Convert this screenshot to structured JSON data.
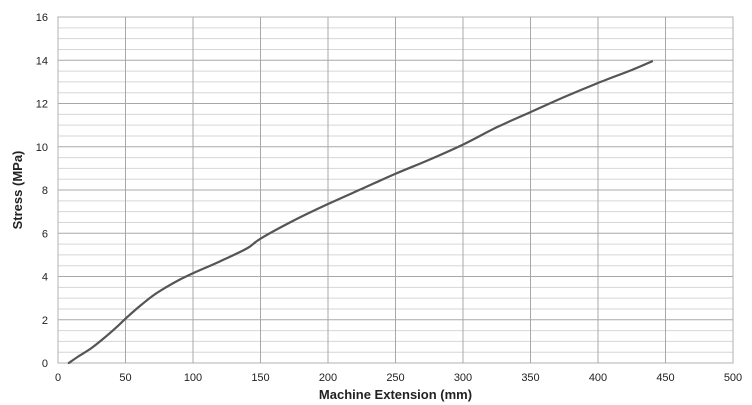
{
  "chart_data": {
    "type": "line",
    "title": "",
    "xlabel": "Machine Extension (mm)",
    "ylabel": "Stress (MPa)",
    "xlim": [
      0,
      500
    ],
    "ylim": [
      0,
      16
    ],
    "x_ticks": [
      0,
      50,
      100,
      150,
      200,
      250,
      300,
      350,
      400,
      450,
      500
    ],
    "y_ticks": [
      0,
      2,
      4,
      6,
      8,
      10,
      12,
      14,
      16
    ],
    "x_tick_labels": [
      "0",
      "50",
      "100",
      "150",
      "200",
      "250",
      "300",
      "350",
      "400",
      "450",
      "500"
    ],
    "y_tick_labels": [
      "0",
      "2",
      "4",
      "6",
      "8",
      "10",
      "12",
      "14",
      "16"
    ],
    "grid": {
      "major_x": true,
      "major_y": true,
      "minor_y_step": 0.5
    },
    "legend": "none",
    "series": [
      {
        "color": "#555555",
        "points": [
          [
            8,
            0
          ],
          [
            15,
            0.3
          ],
          [
            25,
            0.7
          ],
          [
            35,
            1.2
          ],
          [
            45,
            1.75
          ],
          [
            50,
            2.05
          ],
          [
            60,
            2.6
          ],
          [
            70,
            3.1
          ],
          [
            80,
            3.5
          ],
          [
            90,
            3.85
          ],
          [
            100,
            4.15
          ],
          [
            120,
            4.7
          ],
          [
            140,
            5.3
          ],
          [
            150,
            5.75
          ],
          [
            175,
            6.6
          ],
          [
            200,
            7.35
          ],
          [
            225,
            8.05
          ],
          [
            250,
            8.75
          ],
          [
            275,
            9.4
          ],
          [
            300,
            10.1
          ],
          [
            325,
            10.9
          ],
          [
            350,
            11.6
          ],
          [
            375,
            12.3
          ],
          [
            400,
            12.95
          ],
          [
            425,
            13.55
          ],
          [
            440,
            13.95
          ]
        ]
      }
    ]
  }
}
